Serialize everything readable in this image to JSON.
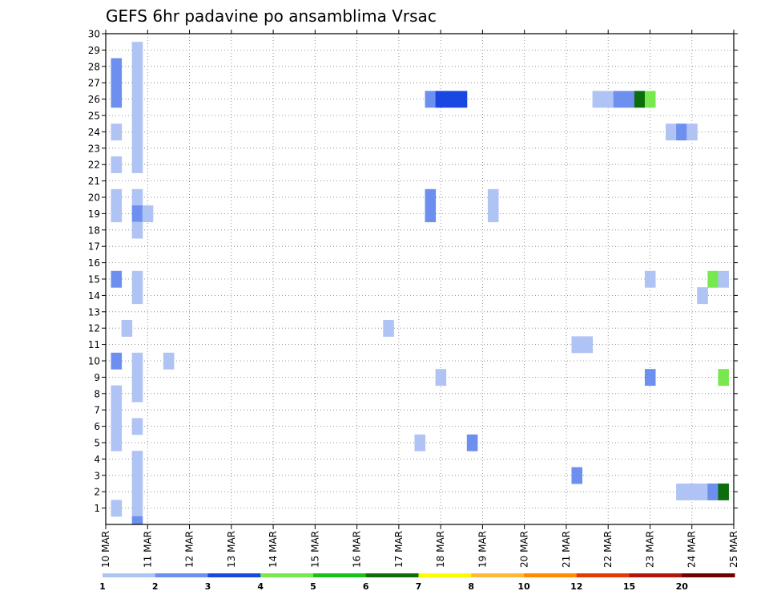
{
  "chart_data": {
    "type": "heatmap",
    "title": "GEFS 6hr padavine po ansamblima Vrsac",
    "x_tick_labels": [
      "10 MAR",
      "11 MAR",
      "12 MAR",
      "13 MAR",
      "14 MAR",
      "15 MAR",
      "16 MAR",
      "17 MAR",
      "18 MAR",
      "19 MAR",
      "20 MAR",
      "21 MAR",
      "22 MAR",
      "23 MAR",
      "24 MAR",
      "25 MAR"
    ],
    "y_tick_labels": [
      "1",
      "2",
      "3",
      "4",
      "5",
      "6",
      "7",
      "8",
      "9",
      "10",
      "11",
      "12",
      "13",
      "14",
      "15",
      "16",
      "17",
      "18",
      "19",
      "20",
      "21",
      "22",
      "23",
      "24",
      "25",
      "26",
      "27",
      "28",
      "29",
      "30"
    ],
    "xlim": [
      "10 MAR",
      "25 MAR"
    ],
    "ylim": [
      0,
      30
    ],
    "grid": true,
    "colorbar": {
      "levels": [
        "1",
        "2",
        "3",
        "4",
        "5",
        "6",
        "7",
        "8",
        "10",
        "12",
        "15",
        "20"
      ],
      "colors": [
        "#afc3f4",
        "#6c8ff0",
        "#1a46e2",
        "#78e84f",
        "#18c21d",
        "#0c6d0c",
        "#fffb00",
        "#ffb83a",
        "#ff8b00",
        "#e23a00",
        "#b2150c",
        "#6b0000"
      ]
    },
    "cells": [
      {
        "day": 10.25,
        "member": 28,
        "class": 2
      },
      {
        "day": 10.25,
        "member": 27,
        "class": 2
      },
      {
        "day": 10.25,
        "member": 26,
        "class": 2
      },
      {
        "day": 10.25,
        "member": 24,
        "class": 1
      },
      {
        "day": 10.25,
        "member": 22,
        "class": 1
      },
      {
        "day": 10.25,
        "member": 20,
        "class": 1
      },
      {
        "day": 10.25,
        "member": 19,
        "class": 1
      },
      {
        "day": 10.25,
        "member": 15,
        "class": 2
      },
      {
        "day": 10.25,
        "member": 10,
        "class": 2
      },
      {
        "day": 10.25,
        "member": 8,
        "class": 1
      },
      {
        "day": 10.25,
        "member": 7,
        "class": 1
      },
      {
        "day": 10.25,
        "member": 6,
        "class": 1
      },
      {
        "day": 10.25,
        "member": 5,
        "class": 1
      },
      {
        "day": 10.25,
        "member": 1,
        "class": 1
      },
      {
        "day": 10.5,
        "member": 12,
        "class": 1
      },
      {
        "day": 10.75,
        "member": 29,
        "class": 1
      },
      {
        "day": 10.75,
        "member": 28,
        "class": 1
      },
      {
        "day": 10.75,
        "member": 27,
        "class": 1
      },
      {
        "day": 10.75,
        "member": 26,
        "class": 1
      },
      {
        "day": 10.75,
        "member": 25,
        "class": 1
      },
      {
        "day": 10.75,
        "member": 24,
        "class": 1
      },
      {
        "day": 10.75,
        "member": 23,
        "class": 1
      },
      {
        "day": 10.75,
        "member": 22,
        "class": 1
      },
      {
        "day": 10.75,
        "member": 20,
        "class": 1
      },
      {
        "day": 10.75,
        "member": 19,
        "class": 2
      },
      {
        "day": 10.75,
        "member": 18,
        "class": 1
      },
      {
        "day": 10.75,
        "member": 15,
        "class": 1
      },
      {
        "day": 10.75,
        "member": 14,
        "class": 1
      },
      {
        "day": 10.75,
        "member": 10,
        "class": 1
      },
      {
        "day": 10.75,
        "member": 9,
        "class": 1
      },
      {
        "day": 10.75,
        "member": 8,
        "class": 1
      },
      {
        "day": 10.75,
        "member": 6,
        "class": 1
      },
      {
        "day": 10.75,
        "member": 4,
        "class": 1
      },
      {
        "day": 10.75,
        "member": 3,
        "class": 1
      },
      {
        "day": 10.75,
        "member": 2,
        "class": 1
      },
      {
        "day": 10.75,
        "member": 1,
        "class": 1
      },
      {
        "day": 10.75,
        "member": 0,
        "class": 2
      },
      {
        "day": 11.0,
        "member": 19,
        "class": 1
      },
      {
        "day": 11.5,
        "member": 10,
        "class": 1
      },
      {
        "day": 16.75,
        "member": 12,
        "class": 1
      },
      {
        "day": 17.5,
        "member": 5,
        "class": 1
      },
      {
        "day": 17.75,
        "member": 26,
        "class": 2
      },
      {
        "day": 17.75,
        "member": 20,
        "class": 2
      },
      {
        "day": 17.75,
        "member": 19,
        "class": 2
      },
      {
        "day": 18.0,
        "member": 26,
        "class": 3
      },
      {
        "day": 18.0,
        "member": 9,
        "class": 1
      },
      {
        "day": 18.25,
        "member": 26,
        "class": 3
      },
      {
        "day": 18.5,
        "member": 26,
        "class": 3
      },
      {
        "day": 18.75,
        "member": 5,
        "class": 2
      },
      {
        "day": 19.25,
        "member": 20,
        "class": 1
      },
      {
        "day": 19.25,
        "member": 19,
        "class": 1
      },
      {
        "day": 21.25,
        "member": 3,
        "class": 2
      },
      {
        "day": 21.25,
        "member": 11,
        "class": 1
      },
      {
        "day": 21.5,
        "member": 11,
        "class": 1
      },
      {
        "day": 21.75,
        "member": 26,
        "class": 1
      },
      {
        "day": 22.0,
        "member": 26,
        "class": 1
      },
      {
        "day": 22.25,
        "member": 26,
        "class": 2
      },
      {
        "day": 22.5,
        "member": 26,
        "class": 2
      },
      {
        "day": 22.75,
        "member": 26,
        "class": 6
      },
      {
        "day": 23.0,
        "member": 26,
        "class": 4
      },
      {
        "day": 23.0,
        "member": 15,
        "class": 1
      },
      {
        "day": 23.0,
        "member": 9,
        "class": 2
      },
      {
        "day": 23.5,
        "member": 24,
        "class": 1
      },
      {
        "day": 23.75,
        "member": 24,
        "class": 2
      },
      {
        "day": 24.0,
        "member": 24,
        "class": 1
      },
      {
        "day": 23.75,
        "member": 2,
        "class": 1
      },
      {
        "day": 24.0,
        "member": 2,
        "class": 1
      },
      {
        "day": 24.25,
        "member": 2,
        "class": 1
      },
      {
        "day": 24.25,
        "member": 14,
        "class": 1
      },
      {
        "day": 24.5,
        "member": 2,
        "class": 2
      },
      {
        "day": 24.75,
        "member": 2,
        "class": 6
      },
      {
        "day": 24.5,
        "member": 15,
        "class": 4
      },
      {
        "day": 24.75,
        "member": 15,
        "class": 1
      },
      {
        "day": 24.75,
        "member": 9,
        "class": 4
      }
    ]
  }
}
